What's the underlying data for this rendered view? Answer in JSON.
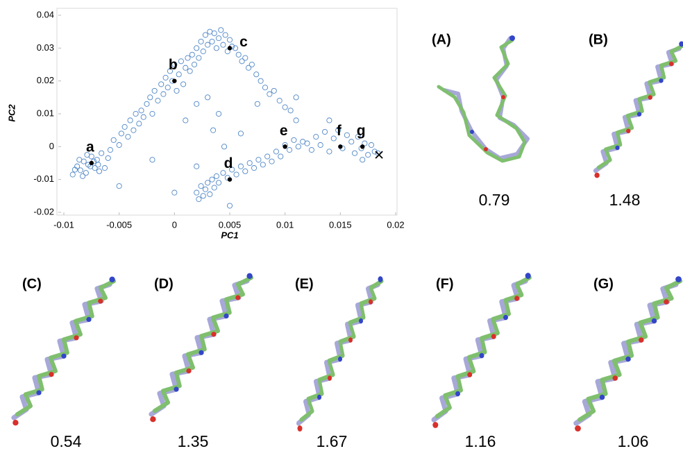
{
  "chart_data": {
    "type": "scatter",
    "xlabel": "PC1",
    "ylabel": "PC2",
    "xlim": [
      -0.01,
      0.02
    ],
    "ylim": [
      -0.02,
      0.04
    ],
    "xticks": [
      -0.01,
      -0.005,
      0,
      0.005,
      0.01,
      0.015,
      0.02
    ],
    "yticks": [
      -0.02,
      -0.01,
      0,
      0.01,
      0.02,
      0.03,
      0.04
    ],
    "color": "#4f86c6",
    "x": [
      -0.0092,
      -0.0088,
      -0.0085,
      -0.0082,
      -0.008,
      -0.0078,
      -0.0075,
      -0.0072,
      -0.007,
      -0.0068,
      -0.009,
      -0.0086,
      -0.0083,
      -0.0079,
      -0.0076,
      -0.0073,
      -0.0069,
      -0.0066,
      -0.0063,
      -0.006,
      -0.0058,
      -0.0055,
      -0.005,
      -0.0048,
      -0.0045,
      -0.0042,
      -0.004,
      -0.0037,
      -0.0035,
      -0.0032,
      -0.003,
      -0.0028,
      -0.0025,
      -0.0022,
      -0.002,
      -0.0018,
      -0.0015,
      -0.0012,
      -0.001,
      -0.0008,
      -0.0006,
      -0.0004,
      -0.0002,
      0.0,
      0.0002,
      0.0004,
      0.0006,
      0.0008,
      0.001,
      0.0012,
      0.0014,
      0.0016,
      0.0018,
      0.002,
      0.0022,
      0.0024,
      0.0026,
      0.0028,
      0.003,
      0.0032,
      0.0034,
      0.0036,
      0.0038,
      0.004,
      0.0042,
      0.0044,
      0.0046,
      0.0048,
      0.005,
      0.0052,
      0.0055,
      0.0058,
      0.0061,
      0.0064,
      0.0067,
      0.007,
      0.0074,
      0.0078,
      0.0082,
      0.0086,
      0.009,
      0.0095,
      0.01,
      0.0105,
      0.011,
      0.002,
      0.003,
      0.004,
      0.001,
      0.0035,
      0.002,
      0.0022,
      0.0024,
      0.0026,
      0.0028,
      0.003,
      0.0032,
      0.0034,
      0.0036,
      0.0038,
      0.004,
      0.0044,
      0.0048,
      0.0052,
      0.0056,
      0.006,
      0.0064,
      0.0068,
      0.0072,
      0.0076,
      0.008,
      0.0084,
      0.0088,
      0.0092,
      0.0096,
      0.01,
      0.0104,
      0.0108,
      0.0112,
      0.0116,
      0.012,
      0.0124,
      0.0128,
      0.0132,
      0.0136,
      0.014,
      0.0144,
      0.0148,
      0.0152,
      0.0156,
      0.016,
      0.0163,
      0.0166,
      0.0169,
      0.0172,
      0.0175,
      0.0178,
      0.0181,
      0.0184,
      0.017,
      0.0,
      0.0045,
      0.011,
      0.0075,
      -0.002,
      0.006,
      0.014,
      0.005,
      0.002,
      -0.005
    ],
    "y": [
      -0.0085,
      -0.006,
      -0.0072,
      -0.0045,
      -0.008,
      -0.0055,
      -0.003,
      -0.0065,
      -0.004,
      -0.0075,
      -0.007,
      -0.004,
      -0.009,
      -0.0025,
      -0.006,
      -0.0045,
      -0.0055,
      -0.002,
      -0.0065,
      -0.0035,
      -0.001,
      0.002,
      0.0005,
      0.004,
      0.006,
      0.003,
      0.008,
      0.005,
      0.01,
      0.007,
      0.011,
      0.009,
      0.013,
      0.015,
      0.01,
      0.017,
      0.014,
      0.019,
      0.016,
      0.021,
      0.018,
      0.023,
      0.02,
      0.025,
      0.017,
      0.022,
      0.026,
      0.019,
      0.024,
      0.027,
      0.023,
      0.028,
      0.025,
      0.03,
      0.027,
      0.032,
      0.029,
      0.034,
      0.031,
      0.035,
      0.032,
      0.0345,
      0.03,
      0.033,
      0.0355,
      0.031,
      0.034,
      0.029,
      0.0325,
      0.0305,
      0.03,
      0.028,
      0.026,
      0.027,
      0.024,
      0.025,
      0.022,
      0.02,
      0.018,
      0.016,
      0.017,
      0.014,
      0.012,
      0.011,
      0.008,
      0.013,
      0.015,
      0.01,
      0.008,
      0.005,
      -0.014,
      -0.016,
      -0.012,
      -0.015,
      -0.013,
      -0.011,
      -0.0145,
      -0.01,
      -0.0125,
      -0.009,
      -0.011,
      -0.008,
      -0.0095,
      -0.007,
      -0.0085,
      -0.006,
      -0.0075,
      -0.005,
      -0.0065,
      -0.004,
      -0.0055,
      -0.003,
      -0.0045,
      -0.0015,
      -0.003,
      0.0005,
      -0.001,
      0.002,
      0.0,
      0.0015,
      0.001,
      -0.001,
      0.003,
      0.0005,
      0.0045,
      -0.0015,
      0.0025,
      0.005,
      -0.0005,
      0.0035,
      0.0015,
      -0.002,
      0.003,
      -0.0005,
      0.001,
      -0.0025,
      0.0005,
      -0.0015,
      -0.002,
      -0.004,
      -0.014,
      0.0,
      0.015,
      0.013,
      -0.004,
      0.004,
      0.008,
      -0.018,
      -0.006,
      -0.012
    ],
    "annotations": [
      {
        "text": "a",
        "x": -0.0075,
        "y": -0.005
      },
      {
        "text": "b",
        "x": 0,
        "y": 0.02
      },
      {
        "text": "c",
        "x": 0.005,
        "y": 0.03
      },
      {
        "text": "d",
        "x": 0.005,
        "y": -0.01
      },
      {
        "text": "e",
        "x": 0.01,
        "y": 0
      },
      {
        "text": "f",
        "x": 0.015,
        "y": 0
      },
      {
        "text": "g",
        "x": 0.017,
        "y": 0
      }
    ],
    "end_marker": {
      "x": 0.0185,
      "y": -0.0025
    }
  },
  "structures": [
    {
      "label": "(A)",
      "rmsd": 0.79
    },
    {
      "label": "(B)",
      "rmsd": 1.48
    },
    {
      "label": "(C)",
      "rmsd": 0.54
    },
    {
      "label": "(D)",
      "rmsd": 1.35
    },
    {
      "label": "(E)",
      "rmsd": 1.67
    },
    {
      "label": "(F)",
      "rmsd": 1.16
    },
    {
      "label": "(G)",
      "rmsd": 1.06
    }
  ]
}
